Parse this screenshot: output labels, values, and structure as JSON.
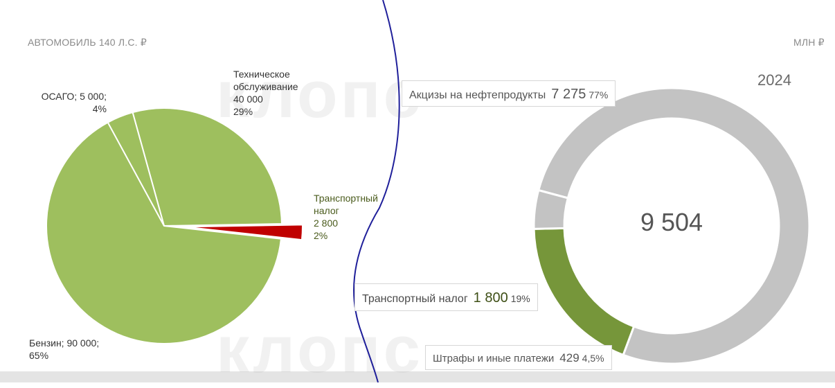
{
  "left_chart": {
    "unit_label": "АВТОМОБИЛЬ 140 Л.С. ₽",
    "chart_data": {
      "type": "pie",
      "slices": [
        {
          "name": "Техническое обслуживание",
          "value": 40000,
          "percent": 29,
          "color": "#9ebf5e"
        },
        {
          "name": "Транспортный налог",
          "value": 2800,
          "percent": 2,
          "color": "#c00000"
        },
        {
          "name": "Бензин",
          "value": 90000,
          "percent": 65,
          "color": "#9ebf5e"
        },
        {
          "name": "ОСАГО",
          "value": 5000,
          "percent": 4,
          "color": "#9ebf5e"
        }
      ]
    },
    "labels": {
      "osago_line1": "ОСАГО; 5 000;",
      "osago_line2": "4%",
      "service_line1": "Техническое",
      "service_line2": "обслуживание",
      "service_line3": "40 000",
      "service_line4": "29%",
      "tax_line1": "Транспортный",
      "tax_line2": "налог",
      "tax_line3": "2 800",
      "tax_line4": "2%",
      "fuel_line1": "Бензин; 90 000;",
      "fuel_line2": "65%"
    }
  },
  "right_chart": {
    "unit_label": "МЛН ₽",
    "year": "2024",
    "total": "9 504",
    "chart_data": {
      "type": "pie",
      "subtype": "donut",
      "slices": [
        {
          "name": "Акцизы на нефтепродукты",
          "value": 7275,
          "percent": 77,
          "color": "#c3c3c3"
        },
        {
          "name": "Транспортный налог",
          "value": 1800,
          "percent": 19,
          "color": "#76963a"
        },
        {
          "name": "Штрафы и иные платежи",
          "value": 429,
          "percent": 4.5,
          "color": "#c3c3c3"
        }
      ]
    },
    "callouts": {
      "excise": {
        "name": "Акцизы на нефтепродукты",
        "value": "7 275",
        "pct": "77%"
      },
      "tax": {
        "name": "Транспортный налог",
        "value": "1 800",
        "pct": "19%"
      },
      "fines": {
        "name": "Штрафы и иные платежи",
        "value": "429",
        "pct": "4,5%"
      }
    }
  },
  "watermark": "клопс",
  "colors": {
    "divider": "#1f1f9a",
    "pie_green": "#9ebf5e",
    "pie_red": "#c00000",
    "donut_green": "#76963a",
    "donut_grey": "#c3c3c3"
  }
}
